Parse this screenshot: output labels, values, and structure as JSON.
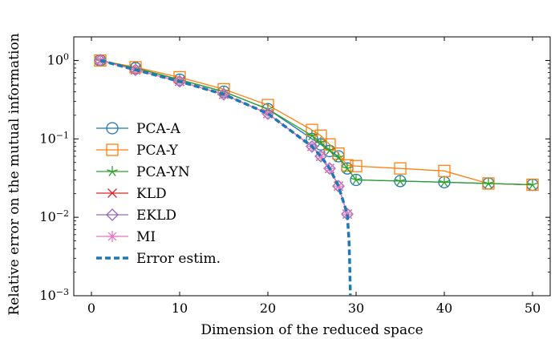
{
  "chart_data": {
    "type": "line",
    "xlabel": "Dimension of the reduced space",
    "ylabel": "Relative error on the mutual information",
    "x_scale": "linear",
    "y_scale": "log",
    "xlim": [
      -2,
      52
    ],
    "ylim": [
      0.001,
      2
    ],
    "x_ticks": [
      0,
      10,
      20,
      30,
      40,
      50
    ],
    "y_ticks": [
      {
        "value": 1,
        "base": "10",
        "exp": "0"
      },
      {
        "value": 0.1,
        "base": "10",
        "exp": "−1"
      },
      {
        "value": 0.01,
        "base": "10",
        "exp": "−2"
      },
      {
        "value": 0.001,
        "base": "10",
        "exp": "−3"
      }
    ],
    "legend_position": "center-left",
    "grid": false,
    "series": [
      {
        "name": "PCA-A",
        "color": "#1f77b4",
        "marker": "circle",
        "dashed": false,
        "x": [
          1,
          5,
          10,
          15,
          20,
          25,
          26,
          27,
          28,
          29,
          30,
          35,
          40,
          45,
          50
        ],
        "y": [
          1.0,
          0.8,
          0.57,
          0.4,
          0.24,
          0.1,
          0.085,
          0.07,
          0.06,
          0.042,
          0.03,
          0.029,
          0.028,
          0.027,
          0.026
        ]
      },
      {
        "name": "PCA-Y",
        "color": "#ff7f0e",
        "marker": "square",
        "dashed": false,
        "x": [
          1,
          5,
          10,
          15,
          20,
          25,
          26,
          27,
          28,
          29,
          30,
          35,
          40,
          45,
          50
        ],
        "y": [
          1.0,
          0.82,
          0.61,
          0.43,
          0.27,
          0.13,
          0.11,
          0.085,
          0.065,
          0.046,
          0.045,
          0.042,
          0.039,
          0.027,
          0.026
        ]
      },
      {
        "name": "PCA-YN",
        "color": "#2ca02c",
        "marker": "star",
        "dashed": false,
        "x": [
          1,
          5,
          10,
          15,
          20,
          25,
          26,
          27,
          28,
          29,
          30,
          35,
          40,
          45,
          50
        ],
        "y": [
          1.0,
          0.8,
          0.57,
          0.4,
          0.24,
          0.11,
          0.09,
          0.072,
          0.058,
          0.042,
          0.03,
          0.029,
          0.028,
          0.027,
          0.026
        ]
      },
      {
        "name": "KLD",
        "color": "#d62728",
        "marker": "x",
        "dashed": false,
        "x": [
          1,
          5,
          10,
          15,
          20,
          25,
          26,
          27,
          28,
          29
        ],
        "y": [
          1.0,
          0.76,
          0.54,
          0.37,
          0.21,
          0.08,
          0.06,
          0.042,
          0.025,
          0.011
        ]
      },
      {
        "name": "EKLD",
        "color": "#9467bd",
        "marker": "diamond",
        "dashed": false,
        "x": [
          1,
          5,
          10,
          15,
          20,
          25,
          26,
          27,
          28,
          29
        ],
        "y": [
          1.0,
          0.76,
          0.54,
          0.37,
          0.21,
          0.08,
          0.06,
          0.042,
          0.025,
          0.011
        ]
      },
      {
        "name": "MI",
        "color": "#e377c2",
        "marker": "asterisk",
        "dashed": false,
        "x": [
          1,
          5,
          10,
          15,
          20,
          25,
          26,
          27,
          28,
          29
        ],
        "y": [
          1.0,
          0.76,
          0.54,
          0.37,
          0.21,
          0.08,
          0.06,
          0.042,
          0.025,
          0.011
        ]
      },
      {
        "name": "Error estim.",
        "color": "#1f77b4",
        "marker": "none",
        "dashed": true,
        "x": [
          1,
          5,
          10,
          15,
          20,
          25,
          26,
          27,
          28,
          29,
          29.2,
          29.3,
          29.35
        ],
        "y": [
          1.0,
          0.76,
          0.54,
          0.37,
          0.21,
          0.08,
          0.06,
          0.042,
          0.025,
          0.011,
          0.005,
          0.002,
          0.001
        ]
      }
    ]
  }
}
